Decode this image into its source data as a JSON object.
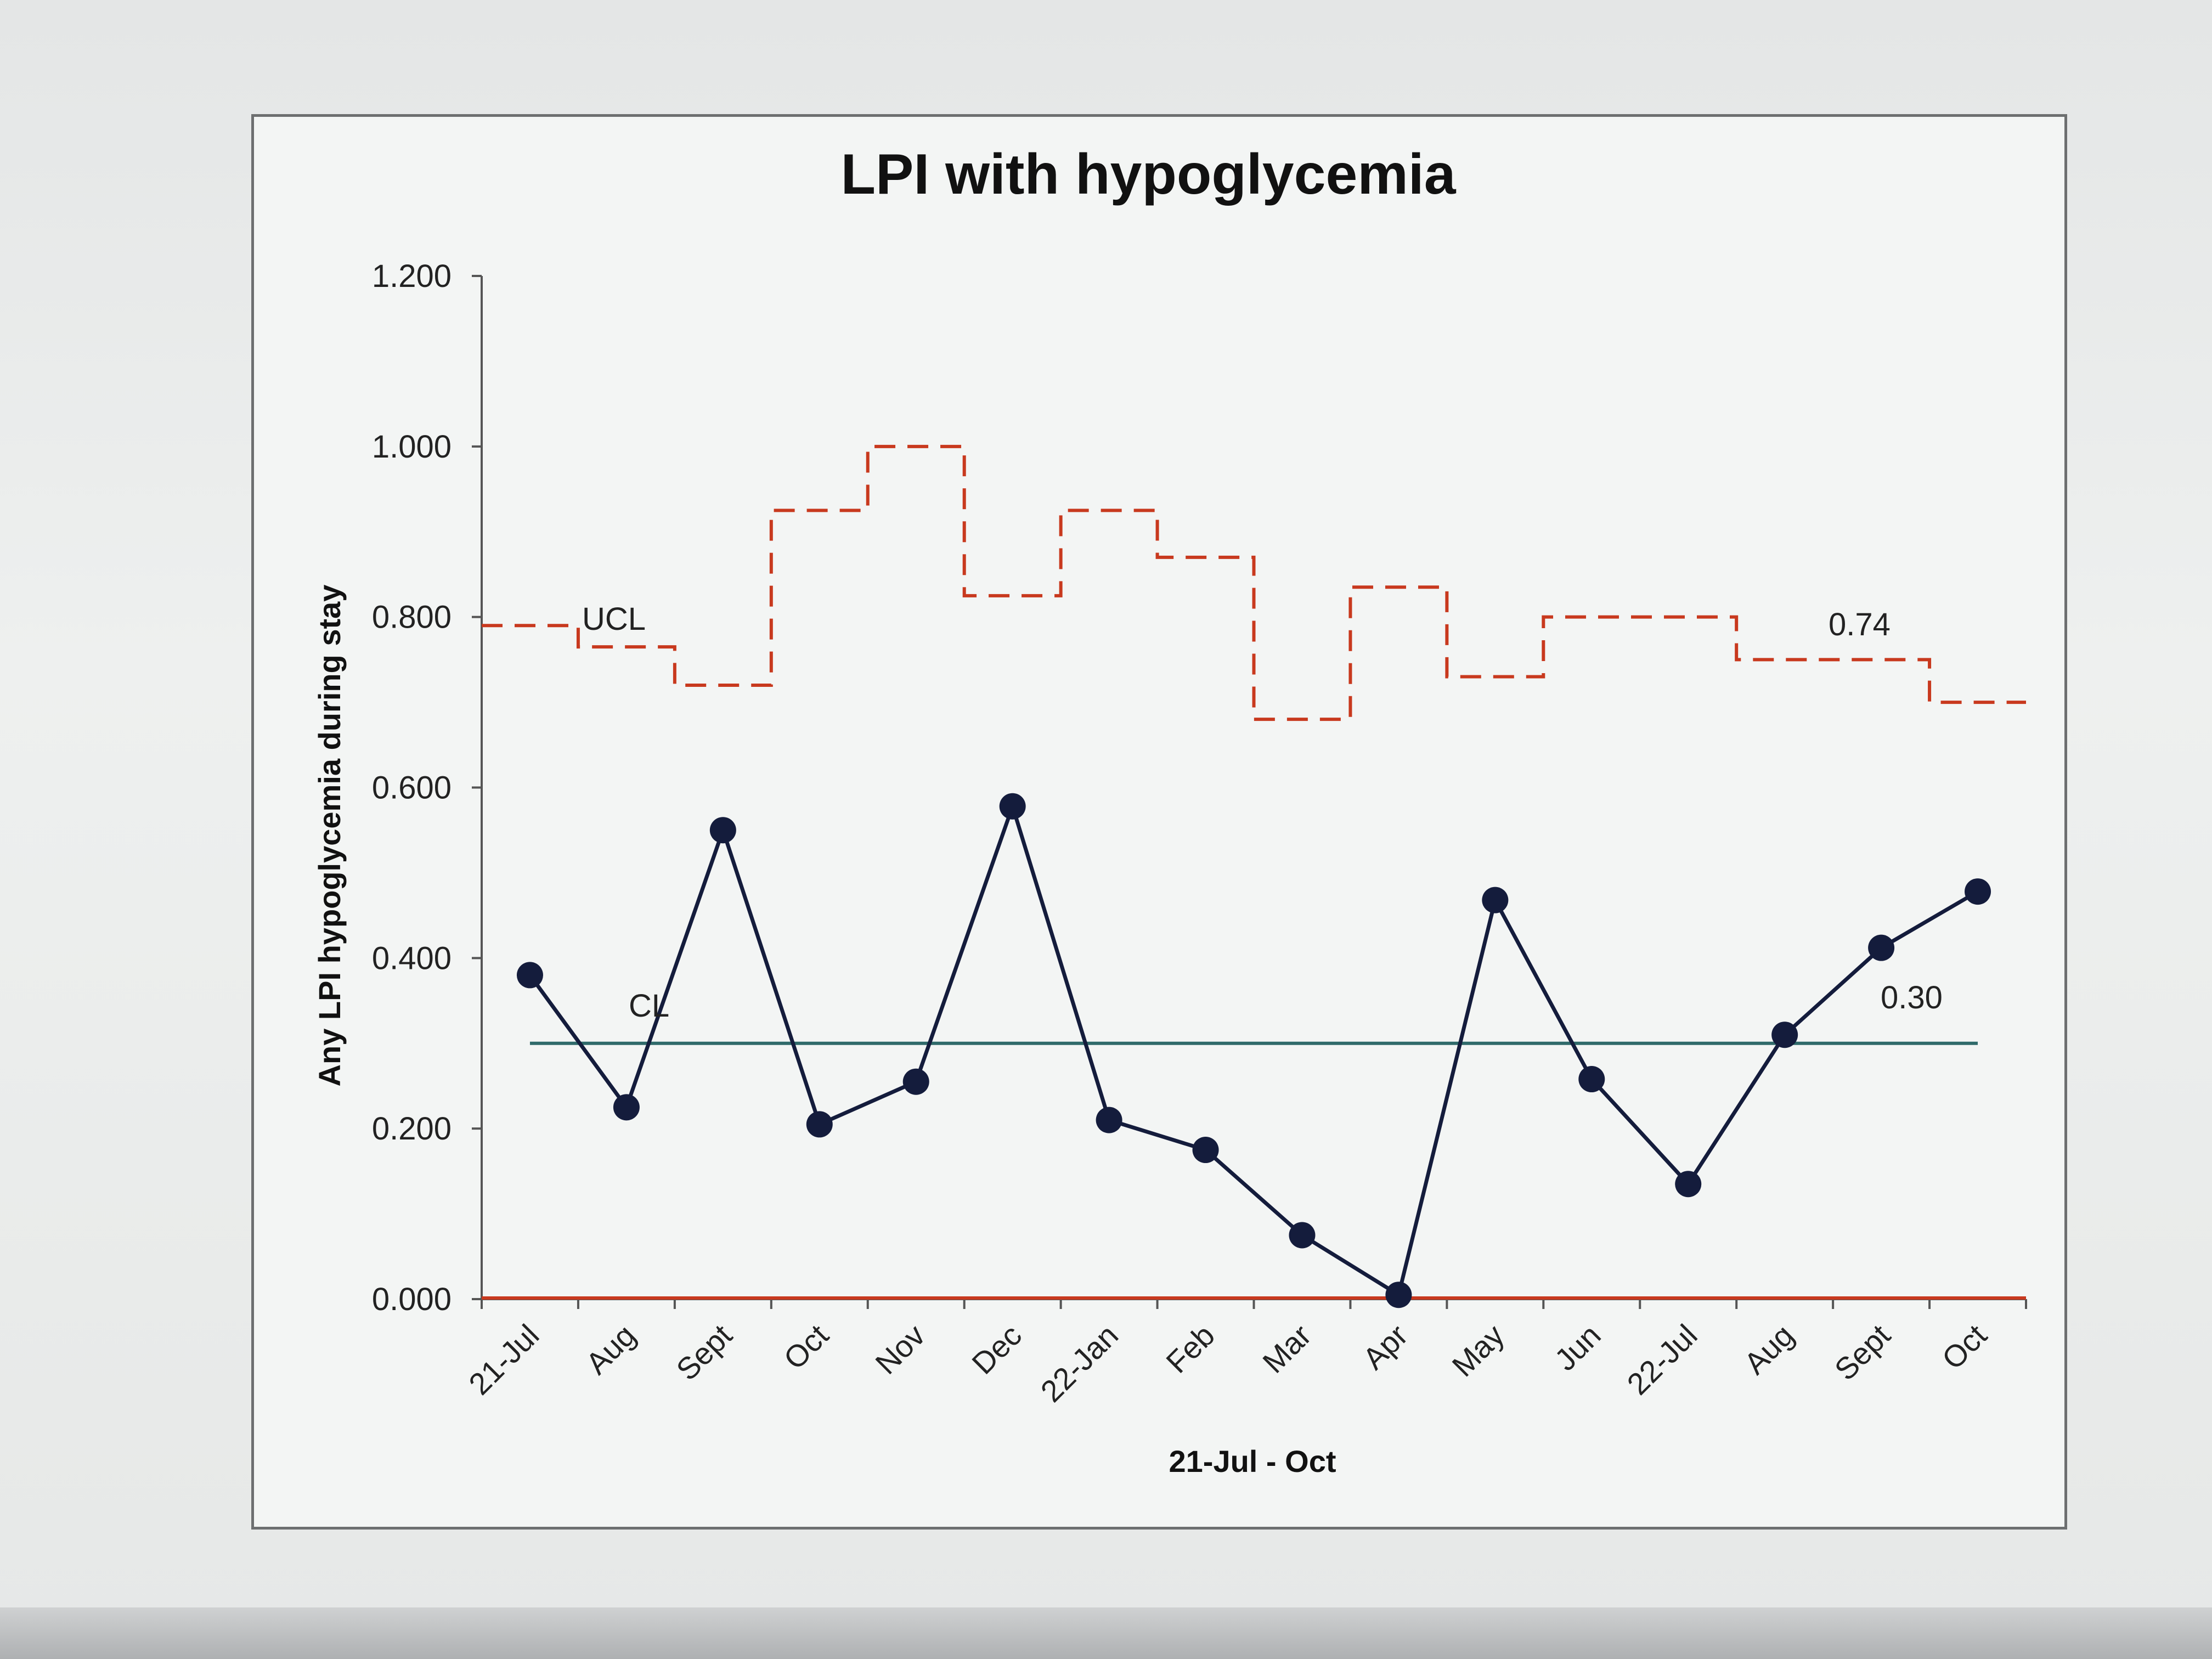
{
  "chart_data": {
    "type": "line",
    "title": "LPI with hypoglycemia",
    "xlabel": "21-Jul - Oct",
    "ylabel": "Any LPI hypoglycemia during stay",
    "ylim": [
      0,
      1.2
    ],
    "yticks": [
      "0.000",
      "0.200",
      "0.400",
      "0.600",
      "0.800",
      "1.000",
      "1.200"
    ],
    "ytick_values": [
      0,
      0.2,
      0.4,
      0.6,
      0.8,
      1.0,
      1.2
    ],
    "categories": [
      "21-Jul",
      "Aug",
      "Sept",
      "Oct",
      "Nov",
      "Dec",
      "22-Jan",
      "Feb",
      "Mar",
      "Apr",
      "May",
      "Jun",
      "22-Jul",
      "Aug",
      "Sept",
      "Oct"
    ],
    "grid": false,
    "series": [
      {
        "values": [
          0.38,
          0.225,
          0.55,
          0.205,
          0.255,
          0.578,
          0.21,
          0.175,
          0.075,
          0.005,
          0.468,
          0.258,
          0.135,
          0.31,
          0.412,
          0.478
        ],
        "color": "#141c3c"
      },
      {
        "name": "UCL",
        "values": [
          0.79,
          0.765,
          0.72,
          0.925,
          1.0,
          0.825,
          0.925,
          0.87,
          0.68,
          0.835,
          0.73,
          0.8,
          0.8,
          0.75,
          0.75,
          0.7
        ],
        "color": "#c8391e"
      },
      {
        "name": "CL",
        "values": [
          0.3,
          0.3,
          0.3,
          0.3,
          0.3,
          0.3,
          0.3,
          0.3,
          0.3,
          0.3,
          0.3,
          0.3,
          0.3,
          0.3,
          0.3,
          0.3
        ],
        "color": "#2f6a6a"
      },
      {
        "values": [
          0,
          0,
          0,
          0,
          0,
          0,
          0,
          0,
          0,
          0,
          0,
          0,
          0,
          0,
          0,
          0
        ],
        "color": "#c8391e"
      }
    ],
    "annotations": {
      "ucl_label": "UCL",
      "cl_label": "CL",
      "ucl_value": "0.74",
      "cl_value": "0.30"
    }
  }
}
